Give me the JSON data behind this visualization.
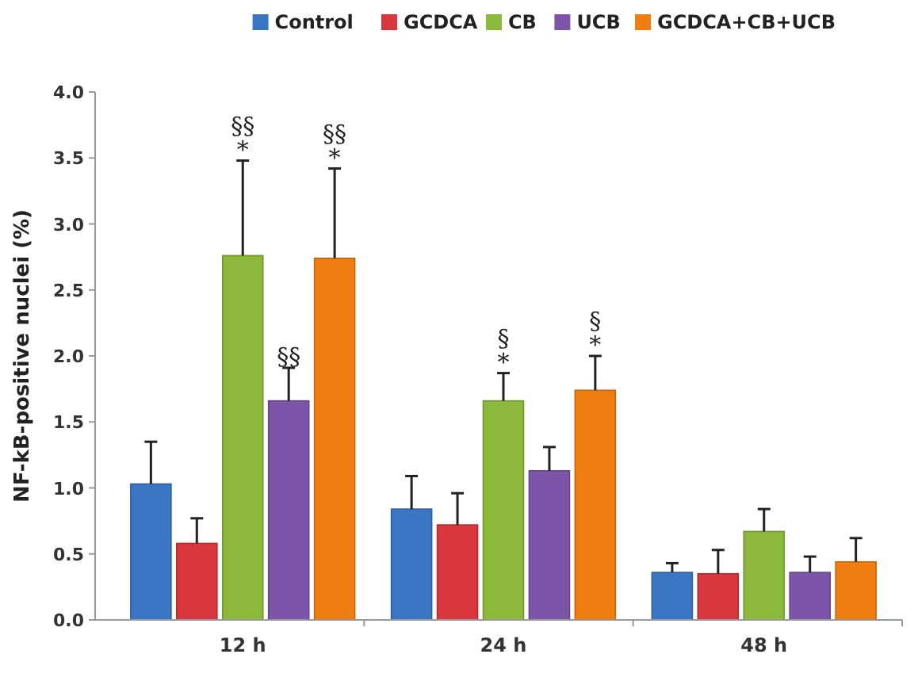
{
  "chart_data": {
    "type": "bar",
    "ylabel": "NF-kB-positive nuclei (%)",
    "categories": [
      "12 h",
      "24 h",
      "48 h"
    ],
    "series": [
      {
        "name": "Control",
        "color": "#3a76c4",
        "values": [
          1.03,
          0.84,
          0.36
        ],
        "errors": [
          [
            1.03,
            1.35
          ],
          [
            0.84,
            1.09
          ],
          [
            0.36,
            0.43
          ]
        ]
      },
      {
        "name": "GCDCA",
        "color": "#d9363e",
        "values": [
          0.58,
          0.72,
          0.35
        ],
        "errors": [
          [
            0.58,
            0.77
          ],
          [
            0.72,
            0.96
          ],
          [
            0.35,
            0.53
          ]
        ]
      },
      {
        "name": "CB",
        "color": "#8cb83c",
        "values": [
          2.76,
          1.66,
          0.67
        ],
        "errors": [
          [
            2.76,
            3.48
          ],
          [
            1.66,
            1.87
          ],
          [
            0.67,
            0.84
          ]
        ]
      },
      {
        "name": "UCB",
        "color": "#7d55a8",
        "values": [
          1.66,
          1.13,
          0.36
        ],
        "errors": [
          [
            1.66,
            1.91
          ],
          [
            1.13,
            1.31
          ],
          [
            0.36,
            0.48
          ]
        ]
      },
      {
        "name": "GCDCA+CB+UCB",
        "color": "#f07d10",
        "values": [
          2.74,
          1.74,
          0.44
        ],
        "errors": [
          [
            2.74,
            3.42
          ],
          [
            1.74,
            2.0
          ],
          [
            0.44,
            0.62
          ]
        ]
      }
    ],
    "ylim": [
      0,
      4
    ],
    "yticks": [
      {
        "value": 0,
        "label": "0.0"
      },
      {
        "value": 0.5,
        "label": "0.5"
      },
      {
        "value": 1,
        "label": "1.0"
      },
      {
        "value": 1.5,
        "label": "1.5"
      },
      {
        "value": 2,
        "label": "2.0"
      },
      {
        "value": 2.5,
        "label": "2.5"
      },
      {
        "value": 3,
        "label": "3.0"
      },
      {
        "value": 3.5,
        "label": "3.5"
      },
      {
        "value": 4,
        "label": "4.0"
      }
    ],
    "grid": false,
    "legend": "top",
    "annotations": [
      "*",
      "§§",
      "*",
      "§§",
      "§§",
      "*",
      "§",
      "*",
      "§"
    ]
  }
}
